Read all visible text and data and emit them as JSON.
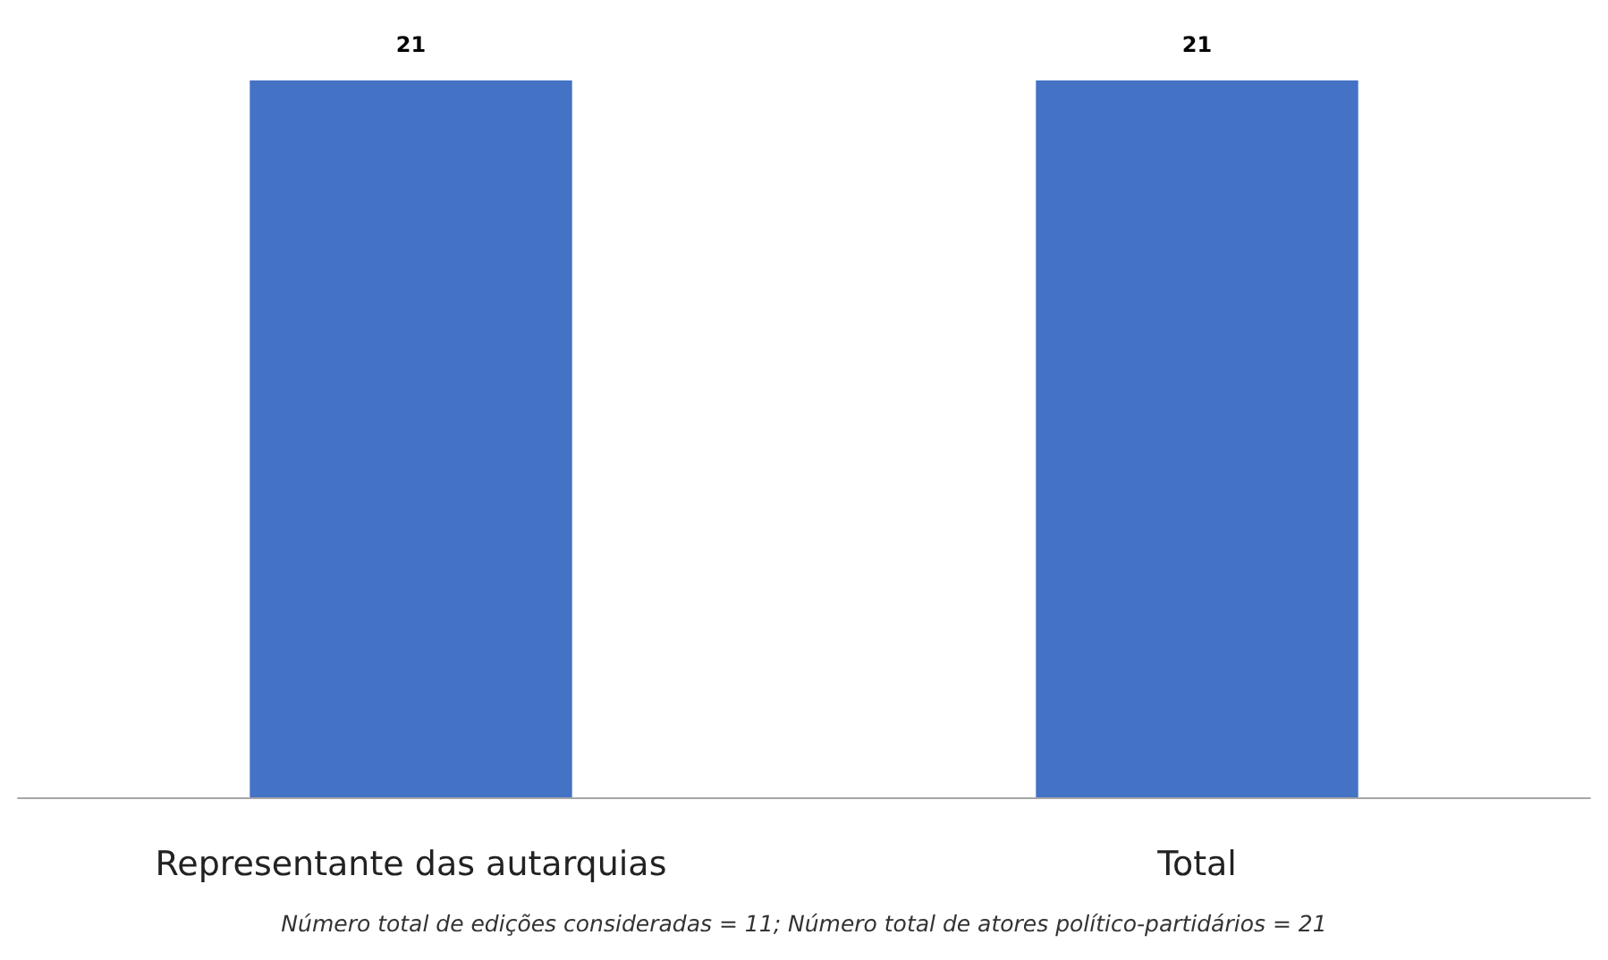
{
  "chart_data": {
    "type": "bar",
    "categories": [
      "Representante das autarquias",
      "Total"
    ],
    "values": [
      21,
      21
    ],
    "color": "#4472c4",
    "data_labels": true,
    "annotations": [
      "Número total de edições consideradas = 11; Número total de atores político-partidários = 21"
    ]
  }
}
